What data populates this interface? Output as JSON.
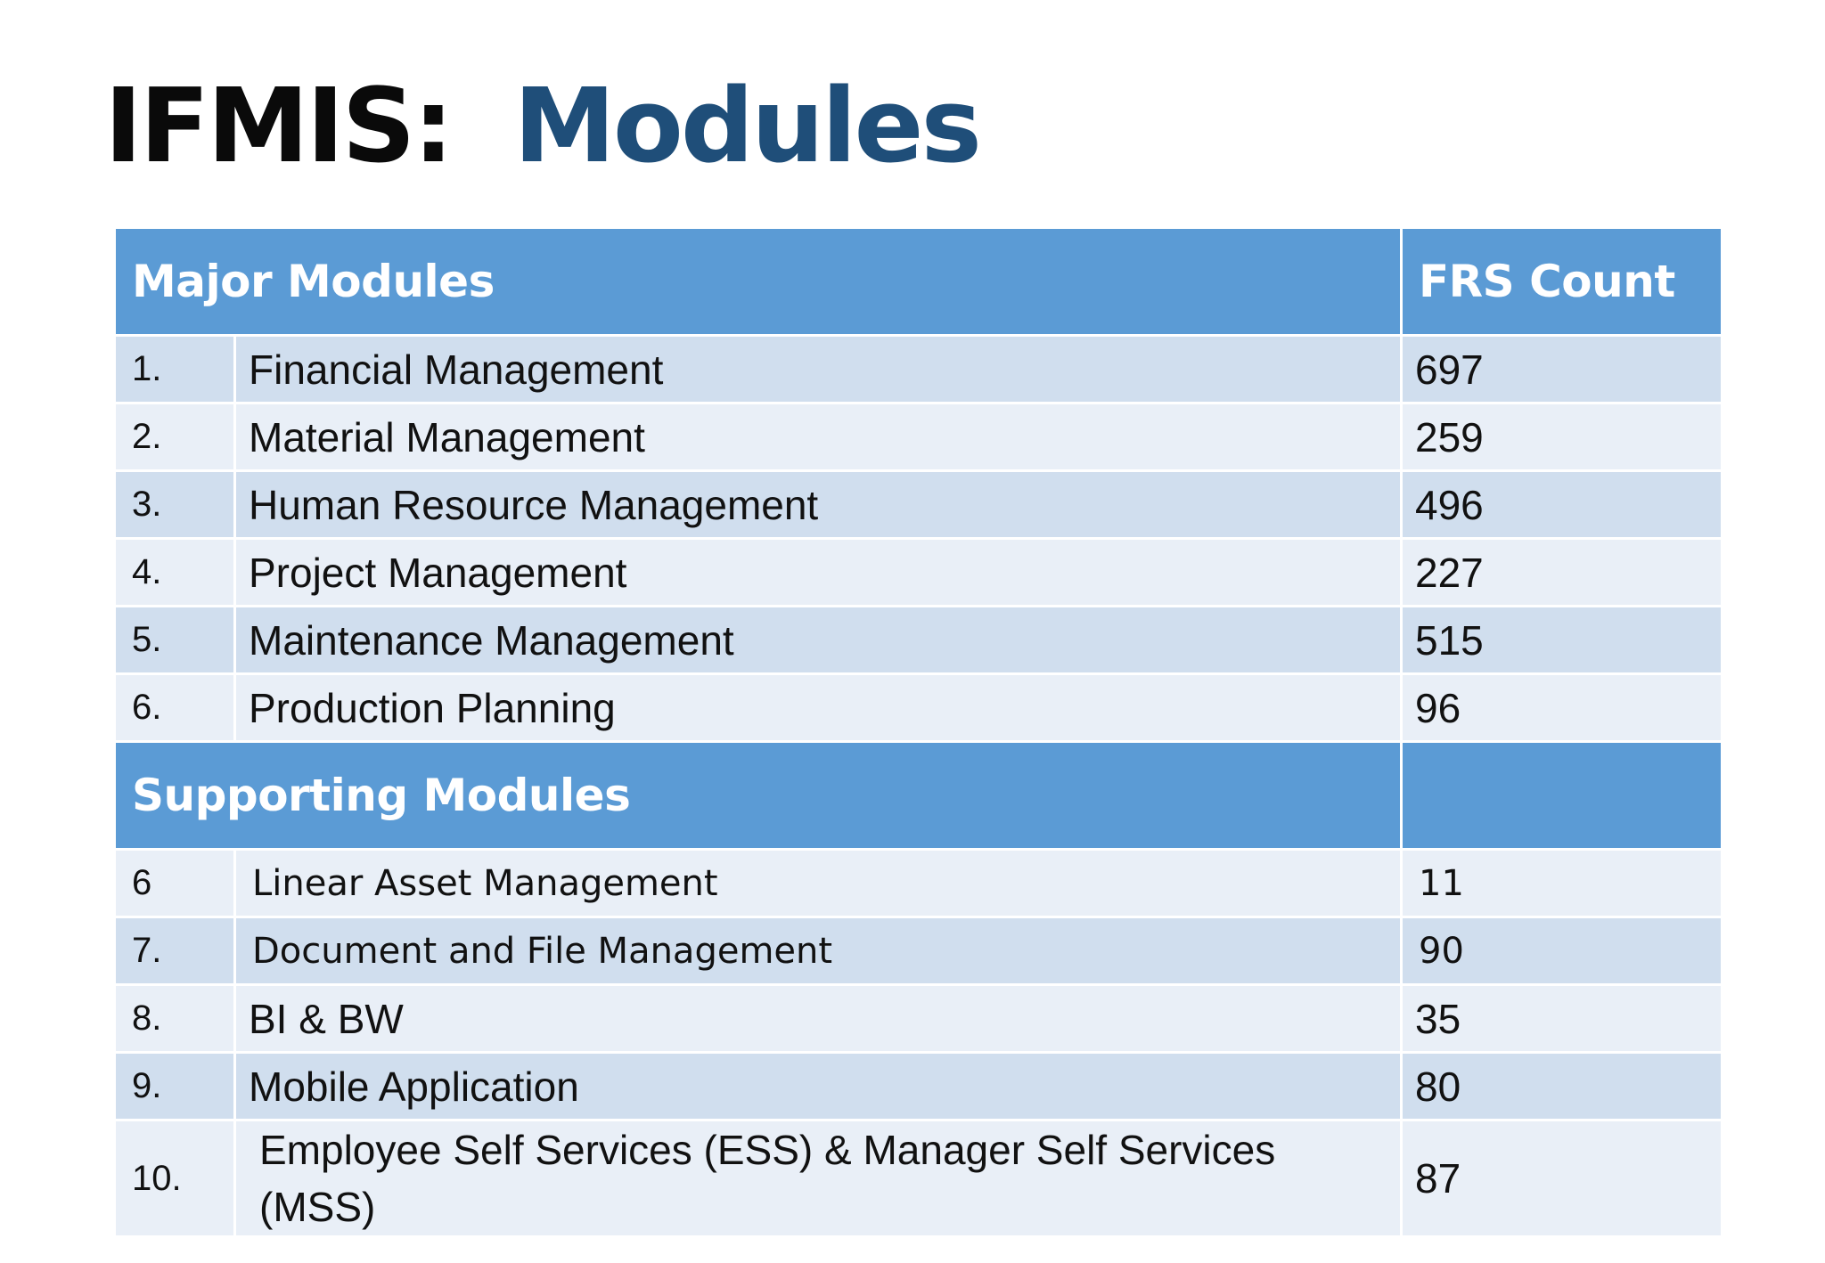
{
  "title": {
    "prefix": "IFMIS:",
    "main": "Modules"
  },
  "table": {
    "major_header": "Major Modules",
    "count_header": "FRS Count",
    "supporting_header": "Supporting Modules",
    "major_rows": [
      {
        "num": "1.",
        "name": "Financial Management",
        "count": "697"
      },
      {
        "num": "2.",
        "name": "Material Management",
        "count": "259"
      },
      {
        "num": "3.",
        "name": "Human Resource Management",
        "count": "496"
      },
      {
        "num": "4.",
        "name": "Project Management",
        "count": "227"
      },
      {
        "num": "5.",
        "name": "Maintenance Management",
        "count": "515"
      },
      {
        "num": "6.",
        "name": "Production Planning",
        "count": "96"
      }
    ],
    "supporting_rows": [
      {
        "num": "6",
        "name": "Linear Asset Management",
        "count": "11"
      },
      {
        "num": "7.",
        "name": "Document and File Management",
        "count": "90"
      },
      {
        "num": "8.",
        "name": "BI & BW",
        "count": "35"
      },
      {
        "num": "9.",
        "name": "Mobile Application",
        "count": "80"
      },
      {
        "num": "10.",
        "name": "Employee Self Services (ESS) & Manager Self Services (MSS)",
        "count": "87"
      }
    ]
  },
  "colors": {
    "title_accent": "#1f4e79",
    "header_fill": "#5b9bd5",
    "row_dark": "#d0deee",
    "row_light": "#e9eff7"
  }
}
